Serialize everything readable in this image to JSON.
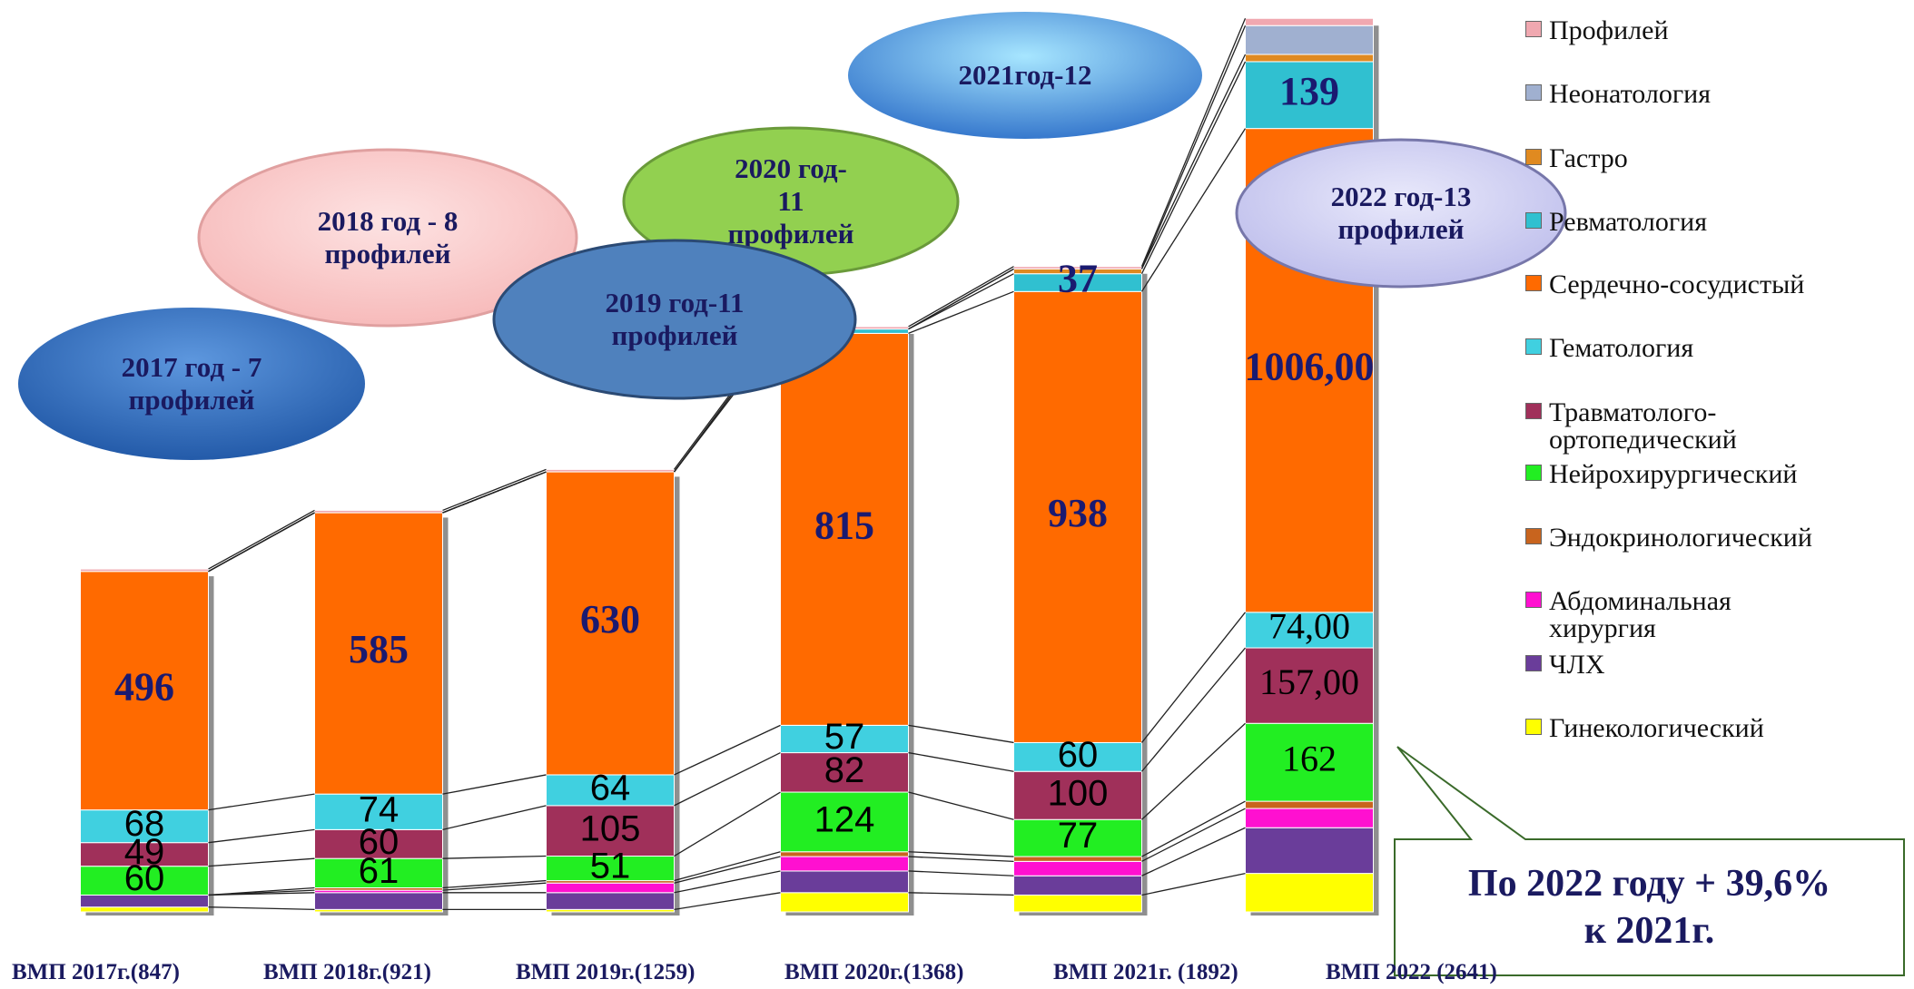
{
  "chart_data": {
    "type": "stacked_bar",
    "categories": [
      "ВМП 2017г.(847)",
      "ВМП 2018г.(921)",
      "ВМП 2019г.(1259)",
      "ВМП 2020г.(1368)",
      "ВМП 2021г. (1892)",
      "ВМП 2022 (2641)"
    ],
    "series": [
      {
        "name": "Гинекологический",
        "color": "#ffff00",
        "values": [
          10,
          5,
          5,
          40,
          35,
          80
        ]
      },
      {
        "name": "ЧЛХ",
        "color": "#6a3d9a",
        "values": [
          25,
          35,
          35,
          45,
          40,
          95
        ]
      },
      {
        "name": "Абдоминальная\nхирургия",
        "color": "#ff10d0",
        "values": [
          0,
          5,
          20,
          30,
          30,
          40
        ]
      },
      {
        "name": "Эндокринологический",
        "color": "#c8641e",
        "values": [
          0,
          5,
          5,
          10,
          10,
          15
        ]
      },
      {
        "name": "Нейрохирургический",
        "color": "#22ee22",
        "values": [
          60,
          61,
          51,
          124,
          77,
          162
        ],
        "value_labels": [
          "60",
          "61",
          "51",
          "124",
          "77",
          "162"
        ]
      },
      {
        "name": "Травматолого-\nортопедический",
        "color": "#a0305a",
        "values": [
          49,
          60,
          105,
          82,
          100,
          157
        ],
        "value_labels": [
          "49",
          "60",
          "105",
          "82",
          "100",
          "157,00"
        ]
      },
      {
        "name": "Гематология",
        "color": "#40d0e0",
        "values": [
          68,
          74,
          64,
          57,
          60,
          74
        ],
        "value_labels": [
          "68",
          "74",
          "64",
          "57",
          "60",
          "74,00"
        ]
      },
      {
        "name": "Сердечно-сосудистый",
        "color": "#ff6a00",
        "values": [
          496,
          585,
          630,
          815,
          938,
          1006
        ],
        "value_labels": [
          "496",
          "585",
          "630",
          "815",
          "938",
          "1006,00"
        ]
      },
      {
        "name": "Ревматология",
        "color": "#30c0d0",
        "values": [
          0,
          0,
          0,
          9,
          37,
          139
        ],
        "value_labels": [
          null,
          null,
          null,
          "9",
          "37",
          "139"
        ]
      },
      {
        "name": "Гастро",
        "color": "#e08a20",
        "values": [
          0,
          0,
          0,
          0,
          10,
          15
        ]
      },
      {
        "name": "Неонатология",
        "color": "#a0b0d0",
        "values": [
          0,
          0,
          0,
          0,
          0,
          60
        ]
      },
      {
        "name": "Профилей",
        "color": "#f0a8b0",
        "values": [
          5,
          5,
          5,
          5,
          5,
          15
        ]
      }
    ],
    "annotations": [
      "2017 год - 7\nпрофилей",
      "2018 год -  8\nпрофилей",
      "2020 год-\n11\nпрофилей",
      "2019 год-11\nпрофилей",
      "2021год-12",
      "2022 год-13\nпрофилей"
    ],
    "callout": "По 2022 году + 39,6%\nк 2021г."
  }
}
